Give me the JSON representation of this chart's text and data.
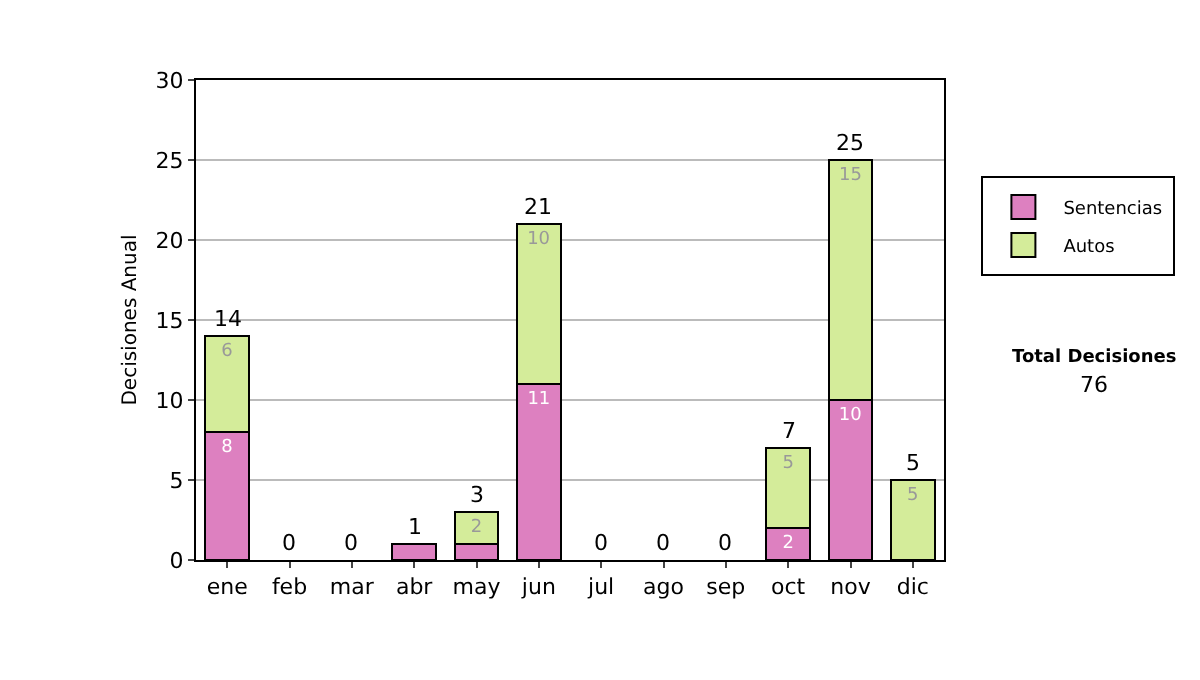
{
  "chart_data": {
    "type": "bar",
    "stacked": true,
    "ylabel": "Decisiones Anual",
    "categories": [
      "ene",
      "feb",
      "mar",
      "abr",
      "may",
      "jun",
      "jul",
      "ago",
      "sep",
      "oct",
      "nov",
      "dic"
    ],
    "series": [
      {
        "name": "Sentencias",
        "color": "#dd80c0",
        "values": [
          8,
          0,
          0,
          1,
          1,
          11,
          0,
          0,
          0,
          2,
          10,
          0
        ],
        "value_labels": [
          "8",
          null,
          null,
          null,
          null,
          "11",
          null,
          null,
          null,
          "2",
          "10",
          null
        ]
      },
      {
        "name": "Autos",
        "color": "#d4ec9a",
        "values": [
          6,
          0,
          0,
          0,
          2,
          10,
          0,
          0,
          0,
          5,
          15,
          5
        ],
        "value_labels": [
          "6",
          null,
          null,
          null,
          "2",
          "10",
          null,
          null,
          null,
          "5",
          "15",
          "5"
        ]
      }
    ],
    "totals": [
      "14",
      "0",
      "0",
      "1",
      "3",
      "21",
      "0",
      "0",
      "0",
      "7",
      "25",
      "5"
    ],
    "ylim": [
      0,
      30
    ],
    "yticks": [
      0,
      5,
      10,
      15,
      20,
      25,
      30
    ],
    "grid": "y",
    "legend": "right",
    "annotations": [
      "Total Decisiones",
      "76"
    ]
  }
}
